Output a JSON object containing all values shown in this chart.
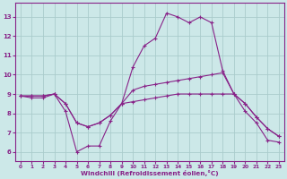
{
  "x": [
    0,
    1,
    2,
    3,
    4,
    5,
    6,
    7,
    8,
    9,
    10,
    11,
    12,
    13,
    14,
    15,
    16,
    17,
    18,
    19,
    20,
    21,
    22,
    23
  ],
  "line1": [
    8.9,
    8.8,
    8.8,
    9.0,
    8.1,
    6.0,
    6.3,
    6.3,
    7.6,
    8.5,
    10.4,
    11.5,
    11.9,
    13.2,
    13.0,
    12.7,
    13.0,
    12.7,
    10.2,
    9.0,
    8.1,
    7.5,
    6.6,
    6.5
  ],
  "line2": [
    8.9,
    8.9,
    8.9,
    9.0,
    8.5,
    7.5,
    7.3,
    7.5,
    7.9,
    8.5,
    9.2,
    9.4,
    9.5,
    9.6,
    9.7,
    9.8,
    9.9,
    10.0,
    10.1,
    9.0,
    8.5,
    7.8,
    7.2,
    6.8
  ],
  "line3": [
    8.9,
    8.9,
    8.9,
    9.0,
    8.5,
    7.5,
    7.3,
    7.5,
    7.9,
    8.5,
    8.6,
    8.7,
    8.8,
    8.9,
    9.0,
    9.0,
    9.0,
    9.0,
    9.0,
    9.0,
    8.5,
    7.8,
    7.2,
    6.8
  ],
  "line_color": "#882288",
  "bg_color": "#cce8e8",
  "grid_color": "#aacccc",
  "xlabel": "Windchill (Refroidissement éolien,°C)",
  "ylim": [
    5.5,
    13.75
  ],
  "xlim_min": -0.5,
  "xlim_max": 23.5,
  "yticks": [
    6,
    7,
    8,
    9,
    10,
    11,
    12,
    13
  ],
  "xticks": [
    0,
    1,
    2,
    3,
    4,
    5,
    6,
    7,
    8,
    9,
    10,
    11,
    12,
    13,
    14,
    15,
    16,
    17,
    18,
    19,
    20,
    21,
    22,
    23
  ]
}
